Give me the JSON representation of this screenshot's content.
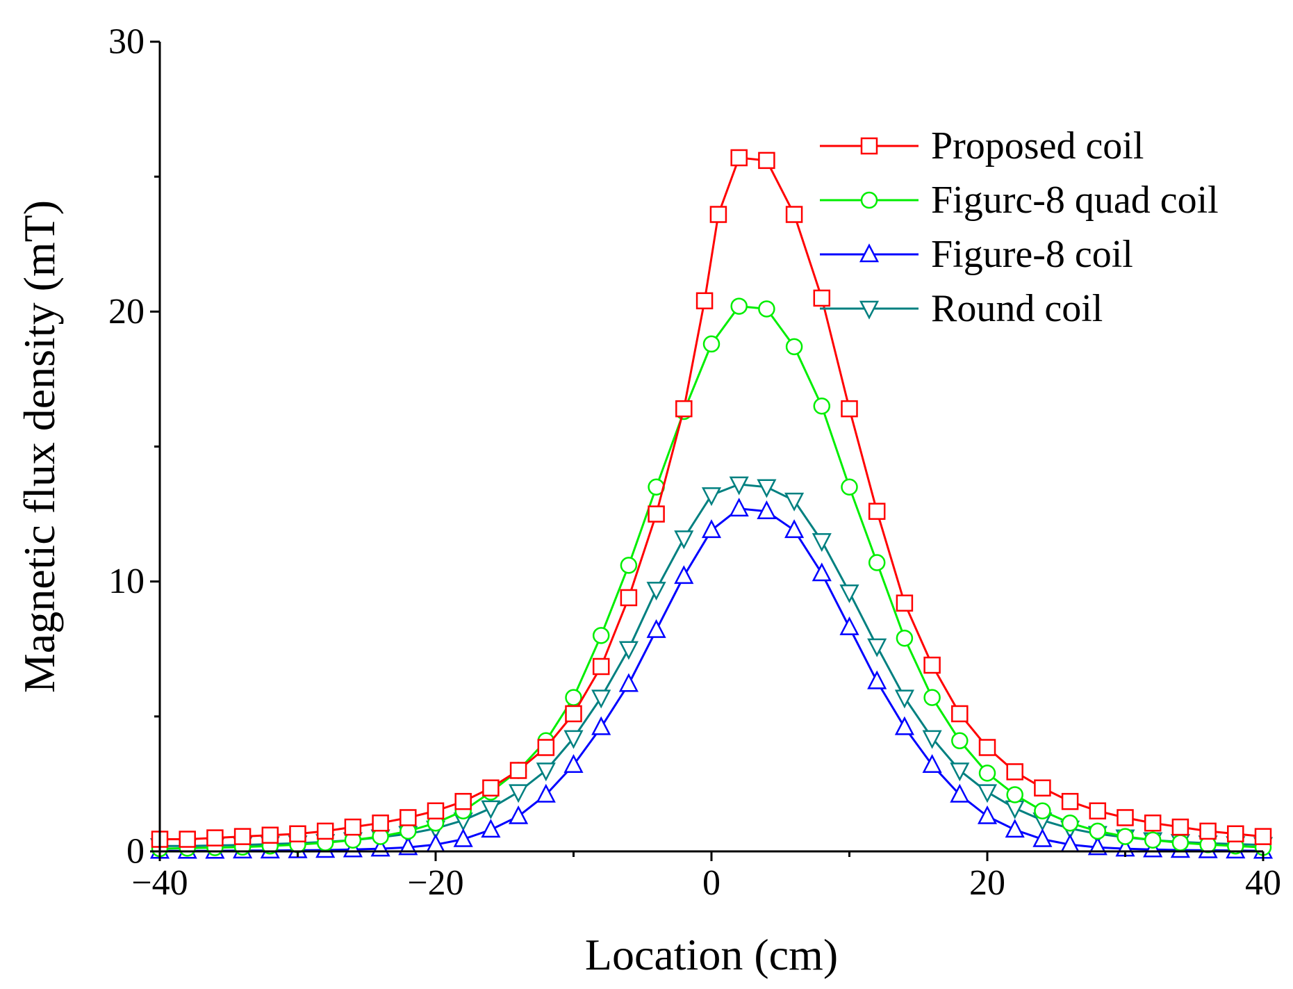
{
  "chart_data": {
    "type": "line",
    "title": "",
    "xlabel": "Location (cm)",
    "ylabel": "Magnetic flux density (mT)",
    "xlim": [
      -40,
      40
    ],
    "ylim": [
      0,
      30
    ],
    "xticks": [
      -40,
      -20,
      0,
      20,
      40
    ],
    "xtick_labels": [
      "−40",
      "−20",
      "0",
      "20",
      "40"
    ],
    "yticks": [
      0,
      10,
      20,
      30
    ],
    "ytick_labels": [
      "0",
      "10",
      "20",
      "30"
    ],
    "grid": false,
    "legend_position": "top-right",
    "series": [
      {
        "name": "Proposed coil",
        "color": "#ff0000",
        "marker": "square",
        "x": [
          -40,
          -38,
          -36,
          -34,
          -32,
          -30,
          -28,
          -26,
          -24,
          -22,
          -20,
          -18,
          -16,
          -14,
          -12,
          -10,
          -8,
          -6,
          -4,
          -2,
          -0.5,
          0.5,
          2,
          4,
          6,
          8,
          10,
          12,
          14,
          16,
          18,
          20,
          22,
          24,
          26,
          28,
          30,
          32,
          34,
          36,
          38,
          40
        ],
        "y": [
          0.45,
          0.45,
          0.5,
          0.55,
          0.6,
          0.65,
          0.75,
          0.9,
          1.05,
          1.25,
          1.5,
          1.85,
          2.35,
          3.0,
          3.85,
          5.1,
          6.85,
          9.4,
          12.5,
          16.4,
          20.4,
          23.6,
          25.7,
          25.6,
          23.6,
          20.5,
          16.4,
          12.6,
          9.2,
          6.9,
          5.1,
          3.85,
          2.95,
          2.35,
          1.85,
          1.5,
          1.25,
          1.05,
          0.9,
          0.75,
          0.65,
          0.55
        ]
      },
      {
        "name": "Figurc-8 quad coil",
        "color": "#00ee00",
        "marker": "circle",
        "x": [
          -40,
          -38,
          -36,
          -34,
          -32,
          -30,
          -28,
          -26,
          -24,
          -22,
          -20,
          -18,
          -16,
          -14,
          -12,
          -10,
          -8,
          -6,
          -4,
          -2,
          0,
          2,
          4,
          6,
          8,
          10,
          12,
          14,
          16,
          18,
          20,
          22,
          24,
          26,
          28,
          30,
          32,
          34,
          36,
          38,
          40
        ],
        "y": [
          0.1,
          0.12,
          0.14,
          0.16,
          0.2,
          0.25,
          0.32,
          0.42,
          0.55,
          0.75,
          1.05,
          1.5,
          2.2,
          3.0,
          4.1,
          5.7,
          8.0,
          10.6,
          13.5,
          16.3,
          18.8,
          20.2,
          20.1,
          18.7,
          16.5,
          13.5,
          10.7,
          7.9,
          5.7,
          4.1,
          2.9,
          2.1,
          1.5,
          1.05,
          0.75,
          0.55,
          0.42,
          0.32,
          0.25,
          0.2,
          0.15
        ]
      },
      {
        "name": "Figure-8 coil",
        "color": "#0000ff",
        "marker": "triangle-up",
        "x": [
          -40,
          -38,
          -36,
          -34,
          -32,
          -30,
          -28,
          -26,
          -24,
          -22,
          -20,
          -18,
          -16,
          -14,
          -12,
          -10,
          -8,
          -6,
          -4,
          -2,
          0,
          2,
          4,
          6,
          8,
          10,
          12,
          14,
          16,
          18,
          20,
          22,
          24,
          26,
          28,
          30,
          32,
          34,
          36,
          38,
          40
        ],
        "y": [
          0.02,
          0.02,
          0.02,
          0.03,
          0.03,
          0.04,
          0.05,
          0.07,
          0.1,
          0.15,
          0.25,
          0.45,
          0.8,
          1.3,
          2.1,
          3.2,
          4.6,
          6.2,
          8.2,
          10.2,
          11.9,
          12.7,
          12.6,
          11.9,
          10.3,
          8.3,
          6.3,
          4.6,
          3.2,
          2.1,
          1.3,
          0.8,
          0.45,
          0.25,
          0.15,
          0.1,
          0.07,
          0.05,
          0.04,
          0.03,
          0.02
        ]
      },
      {
        "name": "Round coil",
        "color": "#008080",
        "marker": "triangle-down",
        "x": [
          -40,
          -38,
          -36,
          -34,
          -32,
          -30,
          -28,
          -26,
          -24,
          -22,
          -20,
          -18,
          -16,
          -14,
          -12,
          -10,
          -8,
          -6,
          -4,
          -2,
          0,
          2,
          4,
          6,
          8,
          10,
          12,
          14,
          16,
          18,
          20,
          22,
          24,
          26,
          28,
          30,
          32,
          34,
          36,
          38,
          40
        ],
        "y": [
          0.2,
          0.2,
          0.22,
          0.24,
          0.27,
          0.3,
          0.35,
          0.42,
          0.52,
          0.65,
          0.85,
          1.15,
          1.6,
          2.2,
          3.0,
          4.2,
          5.7,
          7.5,
          9.7,
          11.6,
          13.2,
          13.6,
          13.5,
          13.0,
          11.5,
          9.6,
          7.6,
          5.7,
          4.2,
          3.0,
          2.2,
          1.6,
          1.15,
          0.85,
          0.65,
          0.52,
          0.42,
          0.35,
          0.3,
          0.27,
          0.24
        ]
      }
    ]
  }
}
